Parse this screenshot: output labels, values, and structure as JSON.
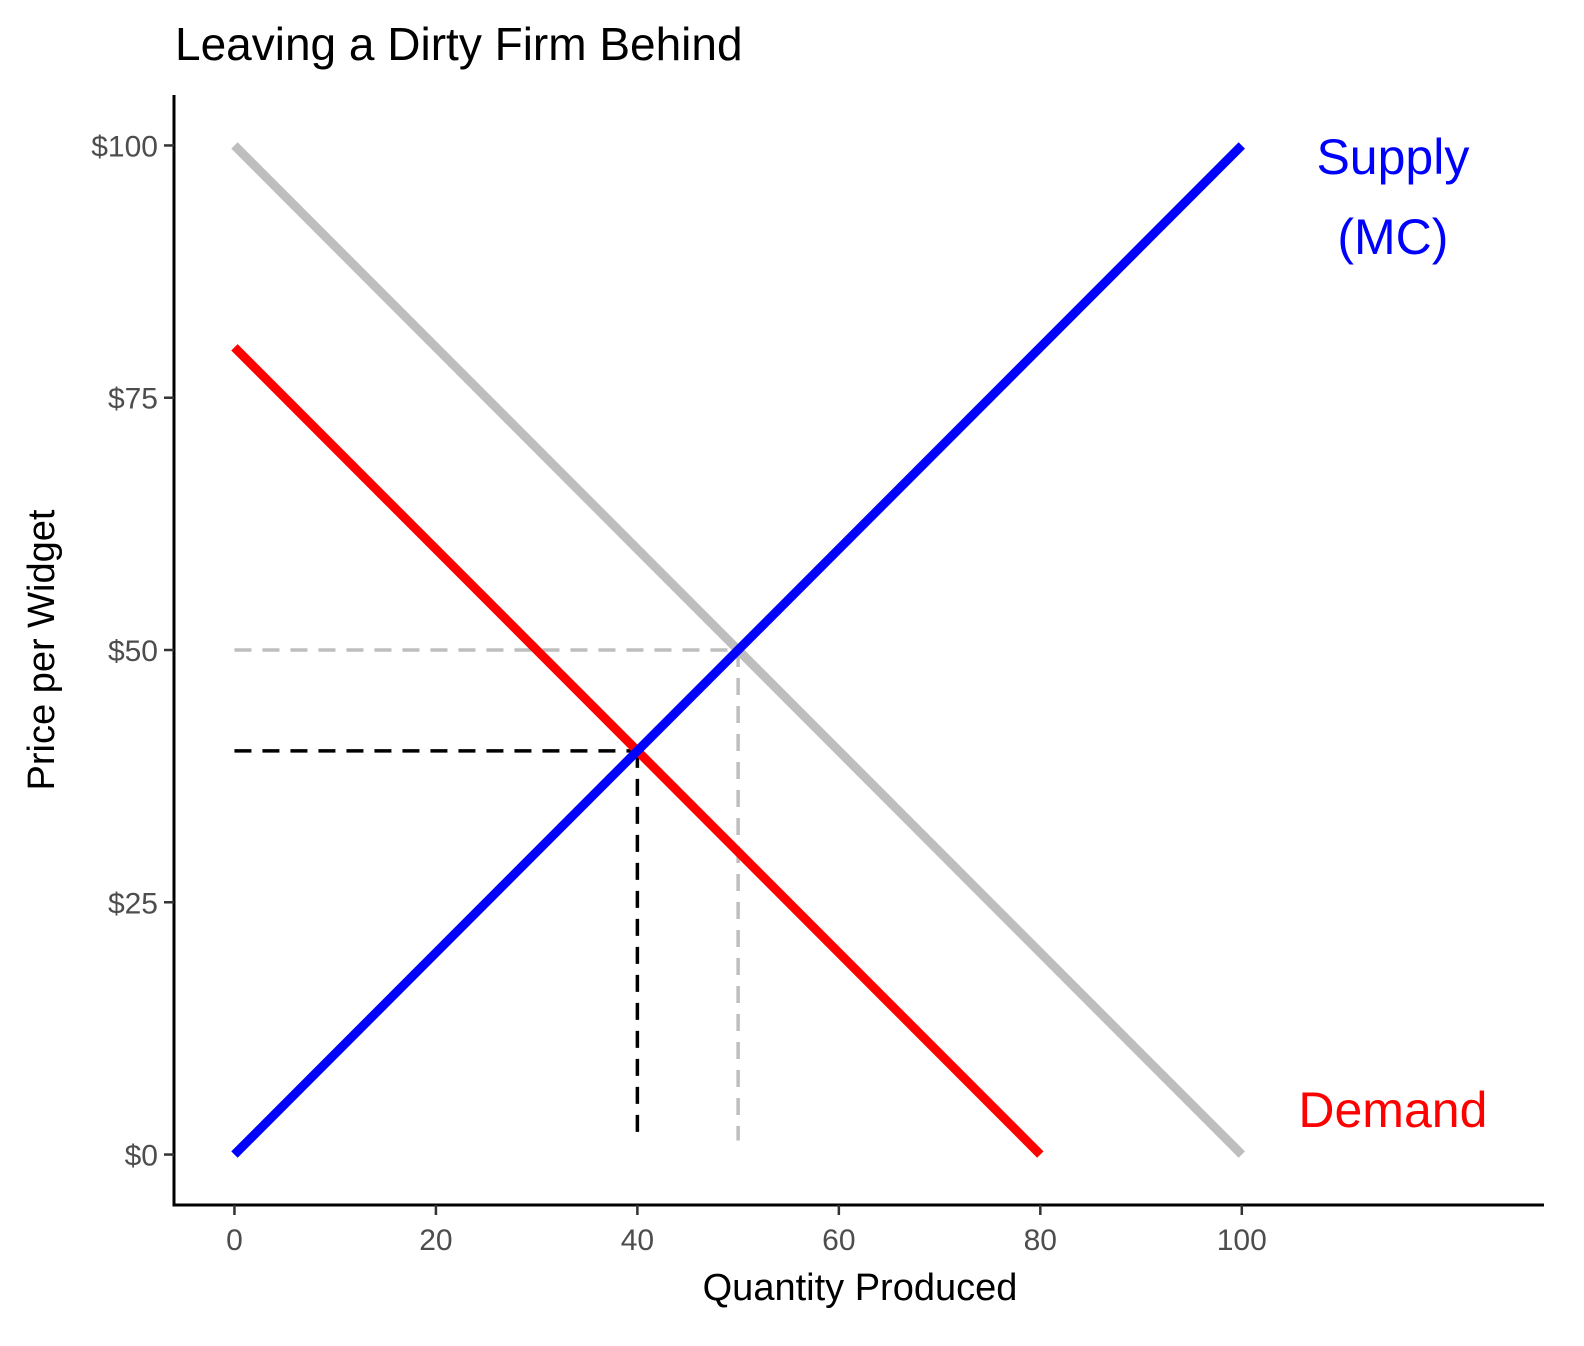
{
  "chart_data": {
    "type": "line",
    "title": "Leaving a Dirty Firm Behind",
    "xlabel": "Quantity Produced",
    "ylabel": "Price per Widget",
    "xlim": [
      -6,
      130
    ],
    "ylim": [
      -5,
      105
    ],
    "x_ticks": [
      0,
      20,
      40,
      60,
      80,
      100
    ],
    "x_tick_labels": [
      "0",
      "20",
      "40",
      "60",
      "80",
      "100"
    ],
    "y_ticks": [
      0,
      25,
      50,
      75,
      100
    ],
    "y_tick_labels": [
      "$0",
      "$25",
      "$50",
      "$75",
      "$100"
    ],
    "grid": false,
    "legend": "none",
    "series": [
      {
        "role": "old-demand",
        "color": "#bebebe",
        "x": [
          0,
          100
        ],
        "y": [
          100,
          0
        ]
      },
      {
        "role": "demand",
        "color": "#ff0000",
        "x": [
          0,
          80
        ],
        "y": [
          80,
          0
        ]
      },
      {
        "role": "supply",
        "color": "#0000ff",
        "x": [
          0,
          100
        ],
        "y": [
          0,
          100
        ]
      }
    ],
    "reference_lines": [
      {
        "role": "old-equilibrium",
        "color": "#bebebe",
        "x": 50,
        "y": 50
      },
      {
        "role": "new-equilibrium",
        "color": "#000000",
        "x": 40,
        "y": 40
      }
    ],
    "annotations": [
      {
        "role": "supply-label",
        "lines": [
          "Supply",
          "(MC)"
        ],
        "color": "#0000ff",
        "x": 115,
        "y": 95
      },
      {
        "role": "demand-label",
        "lines": [
          "Demand"
        ],
        "color": "#ff0000",
        "x": 115,
        "y": 4.5
      }
    ]
  }
}
